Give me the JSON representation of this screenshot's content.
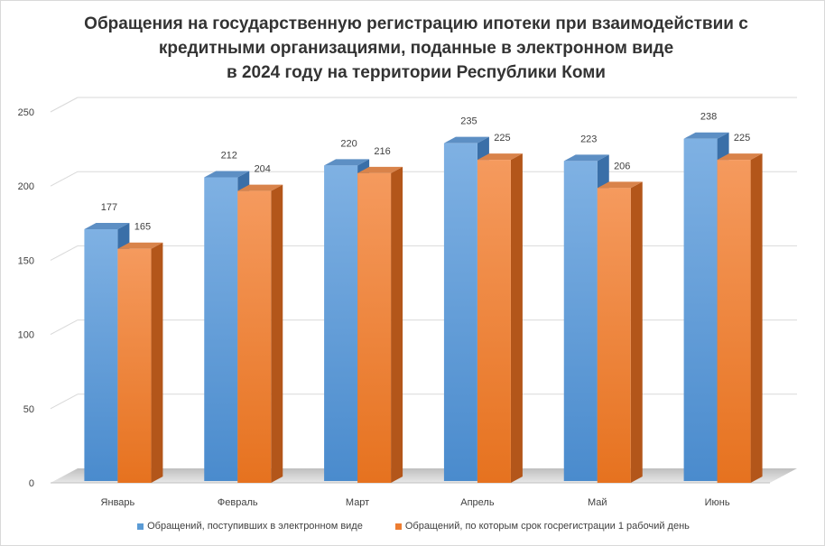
{
  "chart_data": {
    "type": "bar",
    "title_lines": [
      "Обращения на государственную регистрацию ипотеки при взаимодействии с",
      "кредитными организациями, поданные в электронном виде",
      "в 2024 году на территории Республики Коми"
    ],
    "categories": [
      "Январь",
      "Февраль",
      "Март",
      "Апрель",
      "Май",
      "Июнь"
    ],
    "series": [
      {
        "name": "Обращений, поступивших в электронном виде",
        "values": [
          177,
          212,
          220,
          235,
          223,
          238
        ],
        "color": "#5b9bd5"
      },
      {
        "name": "Обращений, по которым срок госрегистрации 1 рабочий день",
        "values": [
          165,
          204,
          216,
          225,
          206,
          225
        ],
        "color": "#ed7d31"
      }
    ],
    "yticks": [
      0,
      50,
      100,
      150,
      200,
      250
    ],
    "ylim": [
      0,
      250
    ],
    "grid": true,
    "legend_position": "bottom",
    "style": "3d-column"
  }
}
